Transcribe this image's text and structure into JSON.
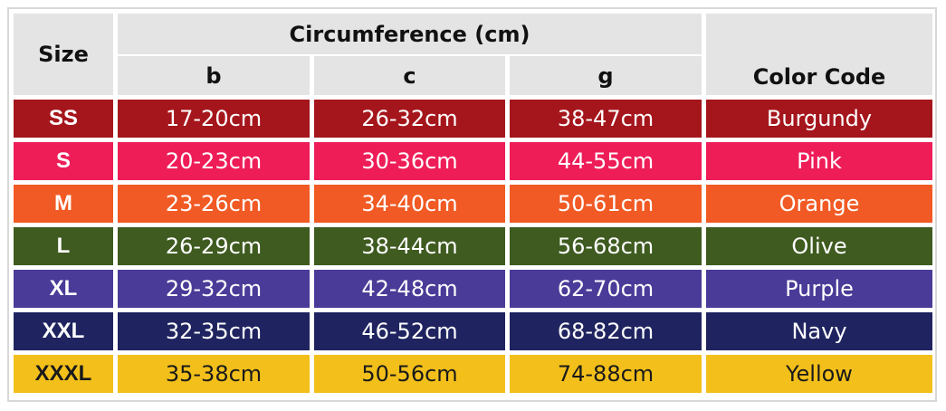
{
  "header": {
    "size": "Size",
    "group": "Circumference (cm)",
    "columns": [
      "b",
      "c",
      "g"
    ],
    "color_code": "Color Code"
  },
  "table": {
    "rows": [
      {
        "cells": [
          "SS",
          "17-20cm",
          "26-32cm",
          "38-47cm",
          "Burgundy"
        ],
        "color": "#a5161c",
        "text_color": "#ffffff"
      },
      {
        "cells": [
          "S",
          "20-23cm",
          "30-36cm",
          "44-55cm",
          "Pink"
        ],
        "color": "#ee1d58",
        "text_color": "#ffffff"
      },
      {
        "cells": [
          "M",
          "23-26cm",
          "34-40cm",
          "50-61cm",
          "Orange"
        ],
        "color": "#f15a24",
        "text_color": "#ffffff"
      },
      {
        "cells": [
          "L",
          "26-29cm",
          "38-44cm",
          "56-68cm",
          "Olive"
        ],
        "color": "#3f5b20",
        "text_color": "#ffffff"
      },
      {
        "cells": [
          "XL",
          "29-32cm",
          "42-48cm",
          "62-70cm",
          "Purple"
        ],
        "color": "#4a3b98",
        "text_color": "#ffffff"
      },
      {
        "cells": [
          "XXL",
          "32-35cm",
          "46-52cm",
          "68-82cm",
          "Navy"
        ],
        "color": "#1f2460",
        "text_color": "#ffffff"
      },
      {
        "cells": [
          "XXXL",
          "35-38cm",
          "50-56cm",
          "74-88cm",
          "Yellow"
        ],
        "color": "#f3c01b",
        "text_color": "#1a1a1a"
      }
    ]
  }
}
